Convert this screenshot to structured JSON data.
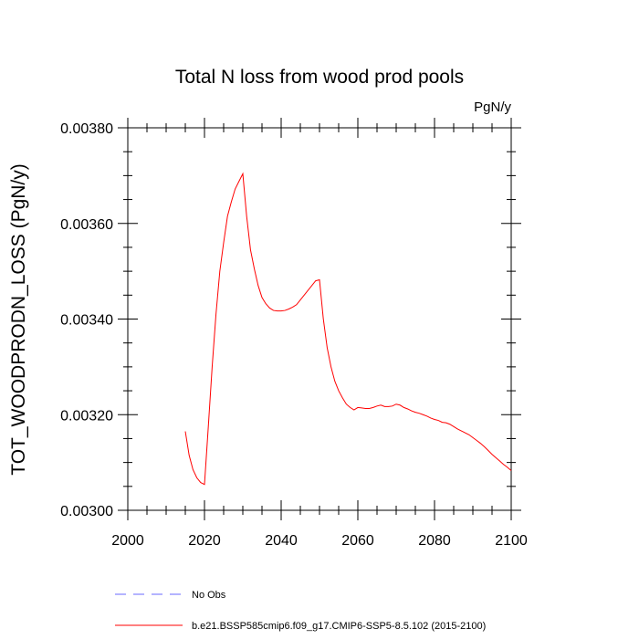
{
  "chart_data": {
    "type": "line",
    "title": "Total N loss from wood prod pools",
    "units": "PgN/y",
    "ylabel": "TOT_WOODPRODN_LOSS  (PgN/y)",
    "xlabel": "",
    "xlim": [
      2000,
      2100
    ],
    "ylim": [
      0.003,
      0.0038
    ],
    "xticks": [
      2000,
      2020,
      2040,
      2060,
      2080,
      2100
    ],
    "xtick_labels": [
      "2000",
      "2020",
      "2040",
      "2060",
      "2080",
      "2100"
    ],
    "yticks": [
      0.003,
      0.0032,
      0.0034,
      0.0036,
      0.0038
    ],
    "ytick_labels": [
      "0.00300",
      "0.00320",
      "0.00340",
      "0.00360",
      "0.00380"
    ],
    "grid": false,
    "series": [
      {
        "name": "No Obs",
        "style": "dashed",
        "color": "#6a6aff",
        "x": [],
        "y": []
      },
      {
        "name": "b.e21.BSSP585cmip6.f09_g17.CMIP6-SSP5-8.5.102 (2015-2100)",
        "style": "solid",
        "color": "#ff0000",
        "x": [
          2015,
          2016,
          2017,
          2018,
          2019,
          2020,
          2021,
          2022,
          2023,
          2024,
          2025,
          2026,
          2027,
          2028,
          2029,
          2030,
          2031,
          2032,
          2033,
          2034,
          2035,
          2036,
          2037,
          2038,
          2039,
          2040,
          2041,
          2042,
          2043,
          2044,
          2045,
          2046,
          2047,
          2048,
          2049,
          2050,
          2051,
          2052,
          2053,
          2054,
          2055,
          2056,
          2057,
          2058,
          2059,
          2060,
          2061,
          2062,
          2063,
          2064,
          2065,
          2066,
          2067,
          2068,
          2069,
          2070,
          2071,
          2072,
          2073,
          2074,
          2075,
          2076,
          2077,
          2078,
          2079,
          2080,
          2081,
          2082,
          2083,
          2084,
          2085,
          2086,
          2087,
          2088,
          2089,
          2090,
          2091,
          2092,
          2093,
          2094,
          2095,
          2096,
          2097,
          2098,
          2099,
          2100
        ],
        "y": [
          0.003165,
          0.003115,
          0.003085,
          0.003068,
          0.003058,
          0.003054,
          0.003175,
          0.0033,
          0.00341,
          0.0035,
          0.00356,
          0.003615,
          0.003645,
          0.003672,
          0.003688,
          0.003704,
          0.003615,
          0.003545,
          0.003505,
          0.00347,
          0.003445,
          0.003432,
          0.003423,
          0.003418,
          0.003417,
          0.003417,
          0.003418,
          0.003421,
          0.003425,
          0.00343,
          0.00344,
          0.00345,
          0.00346,
          0.00347,
          0.00348,
          0.003482,
          0.0034,
          0.00334,
          0.0033,
          0.00327,
          0.00325,
          0.003235,
          0.003222,
          0.003215,
          0.00321,
          0.003215,
          0.003214,
          0.003213,
          0.003213,
          0.003215,
          0.003218,
          0.00322,
          0.003217,
          0.003217,
          0.003218,
          0.003222,
          0.00322,
          0.003215,
          0.003212,
          0.003208,
          0.003205,
          0.003203,
          0.0032,
          0.003197,
          0.003193,
          0.00319,
          0.003188,
          0.003184,
          0.003183,
          0.00318,
          0.003175,
          0.00317,
          0.003166,
          0.003162,
          0.003158,
          0.003152,
          0.003146,
          0.00314,
          0.003133,
          0.003125,
          0.003117,
          0.00311,
          0.003103,
          0.003096,
          0.00309,
          0.003083
        ]
      }
    ]
  }
}
